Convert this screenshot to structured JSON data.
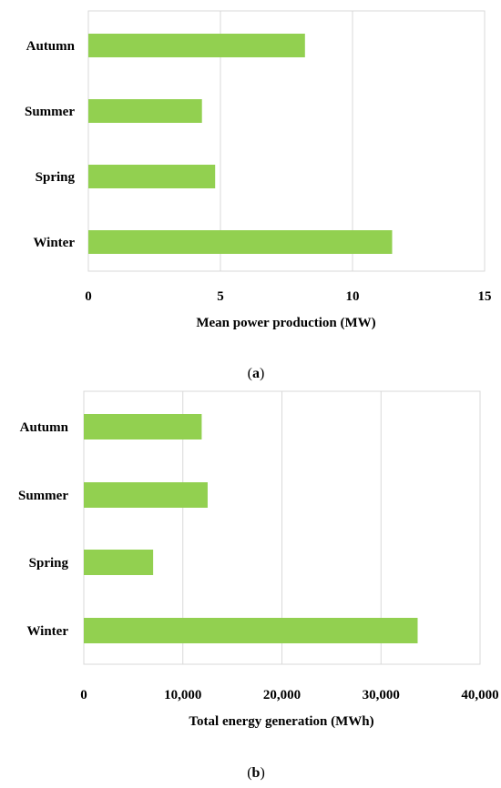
{
  "chart_data": [
    {
      "type": "bar",
      "orientation": "horizontal",
      "categories": [
        "Autumn",
        "Summer",
        "Spring",
        "Winter"
      ],
      "values": [
        8.2,
        4.3,
        4.8,
        11.5
      ],
      "xlabel": "Mean power production (MW)",
      "ylabel": "",
      "xlim": [
        0,
        15
      ],
      "xticks": [
        "0",
        "5",
        "10",
        "15"
      ],
      "grid": "vertical",
      "bar_color": "#92d050",
      "caption_prefix": "(",
      "caption_letter": "a",
      "caption_suffix": ")"
    },
    {
      "type": "bar",
      "orientation": "horizontal",
      "categories": [
        "Autumn",
        "Summer",
        "Spring",
        "Winter"
      ],
      "values": [
        11900,
        12500,
        7000,
        33700
      ],
      "xlabel": "Total energy generation (MWh)",
      "ylabel": "",
      "xlim": [
        0,
        40000
      ],
      "xticks": [
        "0",
        "10,000",
        "20,000",
        "30,000",
        "40,000"
      ],
      "grid": "vertical",
      "bar_color": "#92d050",
      "caption_prefix": "(",
      "caption_letter": "b",
      "caption_suffix": ")"
    }
  ]
}
